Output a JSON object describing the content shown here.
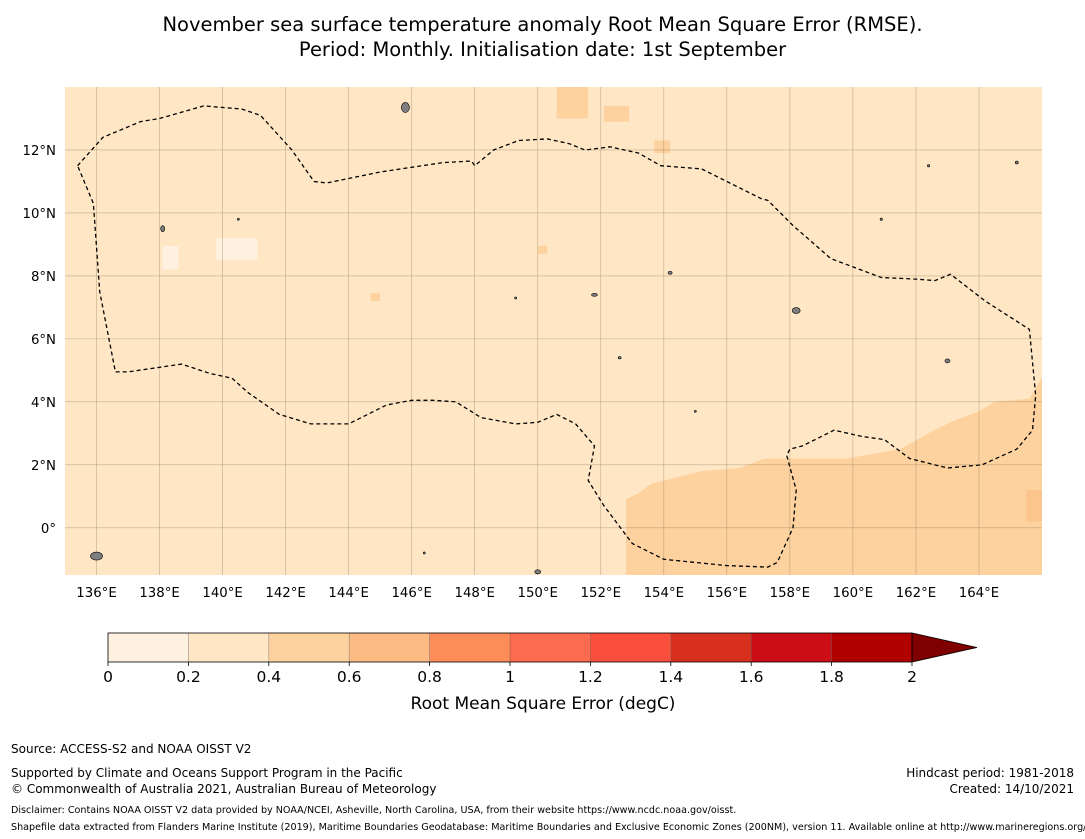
{
  "title": {
    "line1": "November sea surface temperature anomaly Root Mean Square Error (RMSE).",
    "line2": "Period: Monthly. Initialisation date: 1st September"
  },
  "map": {
    "lon_range": [
      135,
      166
    ],
    "lat_range": [
      -1.5,
      14
    ],
    "lon_ticks": [
      136,
      138,
      140,
      142,
      144,
      146,
      148,
      150,
      152,
      154,
      156,
      158,
      160,
      162,
      164
    ],
    "lon_tick_labels": [
      "136°E",
      "138°E",
      "140°E",
      "142°E",
      "144°E",
      "146°E",
      "148°E",
      "150°E",
      "152°E",
      "154°E",
      "156°E",
      "158°E",
      "160°E",
      "162°E",
      "164°E"
    ],
    "lat_ticks": [
      0,
      2,
      4,
      6,
      8,
      10,
      12
    ],
    "lat_tick_labels": [
      "0°",
      "2°N",
      "4°N",
      "6°N",
      "8°N",
      "10°N",
      "12°N"
    ],
    "grid": true,
    "background_rmse_class": "0.2–0.4",
    "colors": {
      "class_0_0.2": "#fff1df",
      "class_0.2_0.4": "#ffe7c6",
      "class_0.4_0.6": "#fdd29e",
      "gridline": "#8c7a5a",
      "boundary": "#000000",
      "land": "#7f7f7f"
    },
    "eez_boundary_lonlat": [
      [
        135.4,
        11.5
      ],
      [
        136.2,
        12.4
      ],
      [
        137.4,
        12.9
      ],
      [
        138.0,
        13.0
      ],
      [
        139.4,
        13.4
      ],
      [
        140.6,
        13.3
      ],
      [
        141.2,
        13.1
      ],
      [
        142.2,
        12.0
      ],
      [
        142.9,
        11.0
      ],
      [
        143.3,
        10.95
      ],
      [
        145.0,
        11.3
      ],
      [
        147.0,
        11.6
      ],
      [
        147.9,
        11.65
      ],
      [
        148.0,
        11.5
      ],
      [
        148.6,
        12.0
      ],
      [
        149.4,
        12.3
      ],
      [
        150.3,
        12.35
      ],
      [
        151.0,
        12.2
      ],
      [
        151.5,
        12.0
      ],
      [
        152.3,
        12.1
      ],
      [
        153.2,
        11.9
      ],
      [
        153.9,
        11.5
      ],
      [
        155.2,
        11.4
      ],
      [
        156.2,
        10.9
      ],
      [
        157.1,
        10.45
      ],
      [
        157.3,
        10.4
      ],
      [
        158.1,
        9.6
      ],
      [
        159.3,
        8.55
      ],
      [
        160.9,
        7.95
      ],
      [
        162.0,
        7.9
      ],
      [
        162.6,
        7.85
      ],
      [
        163.1,
        8.05
      ],
      [
        164.2,
        7.2
      ],
      [
        165.6,
        6.3
      ],
      [
        165.8,
        4.2
      ],
      [
        165.7,
        3.1
      ],
      [
        165.2,
        2.5
      ],
      [
        164.1,
        2.0
      ],
      [
        163.0,
        1.9
      ],
      [
        161.8,
        2.2
      ],
      [
        161.0,
        2.8
      ],
      [
        160.3,
        2.9
      ],
      [
        159.4,
        3.1
      ],
      [
        158.4,
        2.6
      ],
      [
        158.0,
        2.5
      ],
      [
        157.9,
        2.3
      ],
      [
        158.2,
        1.2
      ],
      [
        158.1,
        0.0
      ],
      [
        157.6,
        -1.1
      ],
      [
        157.3,
        -1.25
      ],
      [
        156.0,
        -1.2
      ],
      [
        154.0,
        -1.0
      ],
      [
        153.0,
        -0.5
      ],
      [
        152.1,
        0.7
      ],
      [
        151.6,
        1.5
      ],
      [
        151.8,
        2.6
      ],
      [
        151.2,
        3.3
      ],
      [
        150.6,
        3.6
      ],
      [
        150.0,
        3.35
      ],
      [
        149.3,
        3.3
      ],
      [
        148.2,
        3.5
      ],
      [
        147.4,
        4.0
      ],
      [
        146.7,
        4.05
      ],
      [
        146.0,
        4.05
      ],
      [
        145.2,
        3.9
      ],
      [
        144.0,
        3.3
      ],
      [
        142.8,
        3.3
      ],
      [
        141.8,
        3.6
      ],
      [
        140.8,
        4.3
      ],
      [
        140.3,
        4.75
      ],
      [
        139.6,
        4.9
      ],
      [
        138.7,
        5.2
      ],
      [
        137.0,
        4.95
      ],
      [
        136.6,
        4.95
      ],
      [
        136.1,
        7.5
      ],
      [
        135.9,
        10.3
      ],
      [
        135.4,
        11.5
      ]
    ]
  },
  "colorbar": {
    "boundaries": [
      0,
      0.2,
      0.4,
      0.6,
      0.8,
      1,
      1.2,
      1.4,
      1.6,
      1.8,
      2
    ],
    "tick_labels": [
      "0",
      "0.2",
      "0.4",
      "0.6",
      "0.8",
      "1",
      "1.2",
      "1.4",
      "1.6",
      "1.8",
      "2"
    ],
    "colors": [
      "#fff1df",
      "#ffe7c6",
      "#fdd29e",
      "#fdbb84",
      "#fc8d59",
      "#fd6b4e",
      "#fa4f3c",
      "#d7301f",
      "#cb0e16",
      "#b00000",
      "#7f0000"
    ],
    "extend": "max",
    "label": "Root Mean Square Error (degC)"
  },
  "footer": {
    "source": "Source: ACCESS-S2 and NOAA OISST V2",
    "supported": "Supported by Climate and Oceans Support Program in the Pacific",
    "copyright": "© Commonwealth of Australia 2021, Australian Bureau of Meteorology",
    "hindcast": "Hindcast period: 1981-2018",
    "created": "Created: 14/10/2021",
    "disclaimer": "Disclaimer: Contains NOAA OISST V2 data provided by NOAA/NCEI, Asheville, North Carolina, USA, from their website https://www.ncdc.noaa.gov/oisst.",
    "shapefile": "Shapefile data extracted from Flanders Marine Institute (2019), Maritime Boundaries Geodatabase: Maritime Boundaries and Exclusive Economic Zones (200NM), version 11. Available online at http://www.marineregions.org/."
  }
}
